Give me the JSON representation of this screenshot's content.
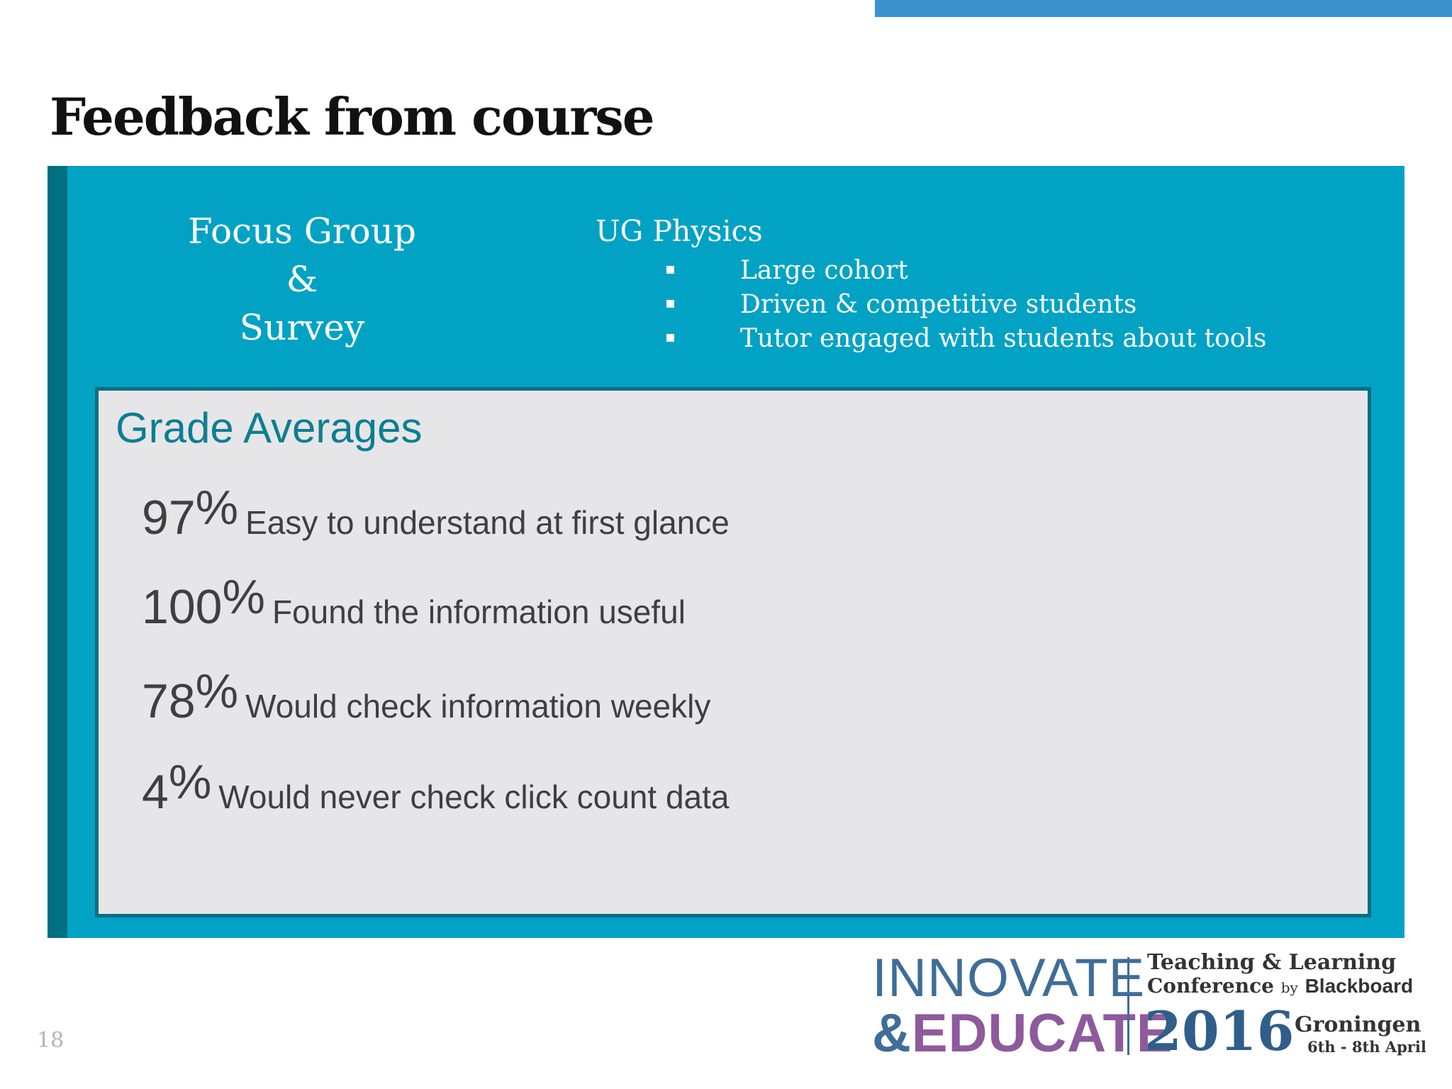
{
  "slide": {
    "title": "Feedback from course",
    "page_number": "18"
  },
  "focus_group": {
    "lines": [
      "Focus Group",
      "&",
      "Survey"
    ]
  },
  "physics": {
    "title": "UG Physics",
    "bullets": [
      "Large cohort",
      "Driven & competitive students",
      "Tutor engaged with students about tools"
    ]
  },
  "grades": {
    "title": "Grade Averages",
    "stats": [
      {
        "number": "97",
        "percent": "%",
        "text": "Easy to understand at first glance"
      },
      {
        "number": "100",
        "percent": "%",
        "text": "Found the information useful"
      },
      {
        "number": "78",
        "percent": "%",
        "text": "Would check information weekly"
      },
      {
        "number": "4",
        "percent": "%",
        "text": "Would never check click count data"
      }
    ]
  },
  "logo": {
    "innovate": "INNOVATE",
    "amp": "&",
    "educate": "EDUCATE",
    "teaching": "Teaching & Learning",
    "conference": "Conference",
    "by": "by",
    "blackboard": "Blackboard",
    "year": "2016",
    "city": "Groningen",
    "dates": "6th - 8th April"
  },
  "colors": {
    "panel": "#02a2c5",
    "panel_accent": "#016f82",
    "top_bar": "#3a93cf",
    "grade_title": "#0d7e92"
  }
}
